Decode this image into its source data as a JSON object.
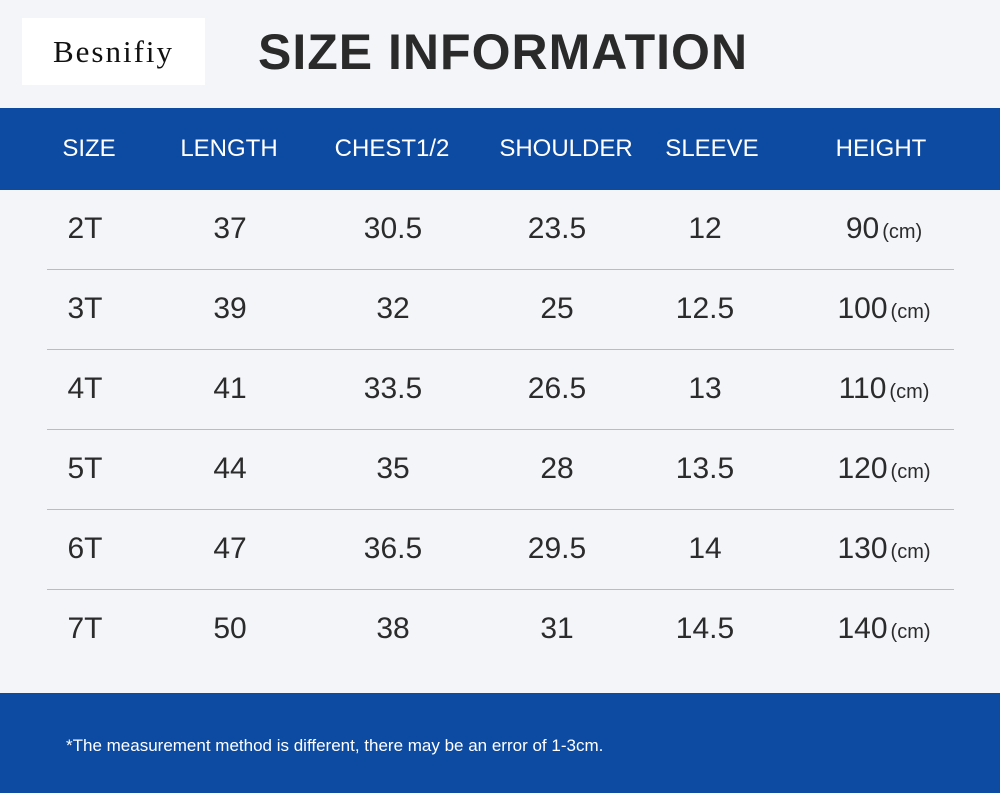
{
  "brand": "Besnifiy",
  "title": "SIZE INFORMATION",
  "table": {
    "headers": [
      "SIZE",
      "LENGTH",
      "CHEST1/2",
      "SHOULDER",
      "SLEEVE",
      "HEIGHT"
    ],
    "rows": [
      {
        "cells": [
          "2T",
          "37",
          "30.5",
          "23.5",
          "12",
          "90"
        ],
        "unit": "(cm)"
      },
      {
        "cells": [
          "3T",
          "39",
          "32",
          "25",
          "12.5",
          "100"
        ],
        "unit": "(cm)"
      },
      {
        "cells": [
          "4T",
          "41",
          "33.5",
          "26.5",
          "13",
          "110"
        ],
        "unit": "(cm)"
      },
      {
        "cells": [
          "5T",
          "44",
          "35",
          "28",
          "13.5",
          "120"
        ],
        "unit": "(cm)"
      },
      {
        "cells": [
          "6T",
          "47",
          "36.5",
          "29.5",
          "14",
          "130"
        ],
        "unit": "(cm)"
      },
      {
        "cells": [
          "7T",
          "50",
          "38",
          "31",
          "14.5",
          "140"
        ],
        "unit": "(cm)"
      }
    ]
  },
  "footer": {
    "note": "*The measurement method is different, there may be an error of 1-3cm."
  }
}
